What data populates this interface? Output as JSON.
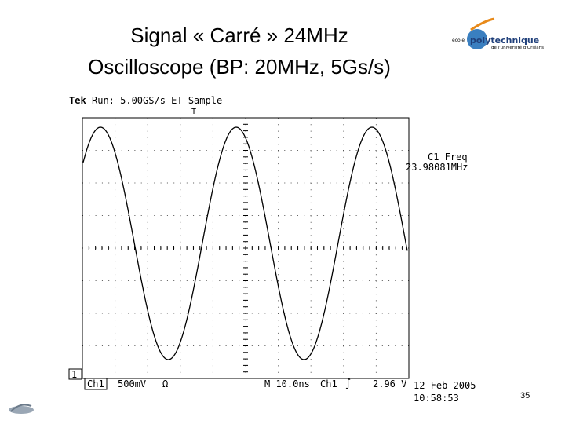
{
  "slide": {
    "title_lines": [
      "Signal « Carré » 24MHz",
      "Oscilloscope (BP: 20MHz, 5Gs/s)"
    ],
    "logo": {
      "prefix": "école",
      "name": "polytechnique",
      "subtitle": "de l'université d'Orléans"
    },
    "scope": {
      "header_brand": "Tek",
      "header": "Run: 5.00GS/s ET Sample",
      "trigger_marker": "T",
      "channel_marker": "1",
      "measure_label": "C1 Freq",
      "measure_value": "23.98081MHz",
      "channel": "Ch1",
      "volts_div": "500mV",
      "coupling": "Ω",
      "timebase": "M 10.0ns",
      "trigger_source": "Ch1",
      "trigger_slope": "∫",
      "trigger_level": "2.96 V",
      "date": "12 Feb 2005",
      "time": "10:58:53"
    },
    "page_number": "35"
  }
}
